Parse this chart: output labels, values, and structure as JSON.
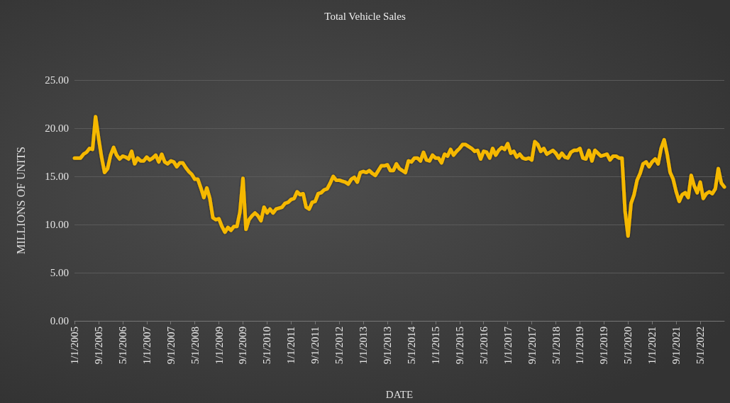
{
  "chart_data": {
    "type": "line",
    "title": "Total Vehicle Sales",
    "xlabel": "DATE",
    "ylabel": "MILLIONS OF UNITS",
    "categories": [
      "1/1/2005",
      null,
      null,
      null,
      null,
      null,
      null,
      null,
      "9/1/2005",
      null,
      null,
      null,
      null,
      null,
      null,
      null,
      "5/1/2006",
      null,
      null,
      null,
      null,
      null,
      null,
      null,
      "1/1/2007",
      null,
      null,
      null,
      null,
      null,
      null,
      null,
      "9/1/2007",
      null,
      null,
      null,
      null,
      null,
      null,
      null,
      "5/1/2008",
      null,
      null,
      null,
      null,
      null,
      null,
      null,
      "1/1/2009",
      null,
      null,
      null,
      null,
      null,
      null,
      null,
      "9/1/2009",
      null,
      null,
      null,
      null,
      null,
      null,
      null,
      "5/1/2010",
      null,
      null,
      null,
      null,
      null,
      null,
      null,
      "1/1/2011",
      null,
      null,
      null,
      null,
      null,
      null,
      null,
      "9/1/2011",
      null,
      null,
      null,
      null,
      null,
      null,
      null,
      "5/1/2012",
      null,
      null,
      null,
      null,
      null,
      null,
      null,
      "1/1/2013",
      null,
      null,
      null,
      null,
      null,
      null,
      null,
      "9/1/2013",
      null,
      null,
      null,
      null,
      null,
      null,
      null,
      "5/1/2014",
      null,
      null,
      null,
      null,
      null,
      null,
      null,
      "1/1/2015",
      null,
      null,
      null,
      null,
      null,
      null,
      null,
      "9/1/2015",
      null,
      null,
      null,
      null,
      null,
      null,
      null,
      "5/1/2016",
      null,
      null,
      null,
      null,
      null,
      null,
      null,
      "1/1/2017",
      null,
      null,
      null,
      null,
      null,
      null,
      null,
      "9/1/2017",
      null,
      null,
      null,
      null,
      null,
      null,
      null,
      "5/1/2018",
      null,
      null,
      null,
      null,
      null,
      null,
      null,
      "1/1/2019",
      null,
      null,
      null,
      null,
      null,
      null,
      null,
      "9/1/2019",
      null,
      null,
      null,
      null,
      null,
      null,
      null,
      "5/1/2020",
      null,
      null,
      null,
      null,
      null,
      null,
      null,
      "1/1/2021",
      null,
      null,
      null,
      null,
      null,
      null,
      null,
      "9/1/2021",
      null,
      null,
      null,
      null,
      null,
      null,
      null,
      "5/1/2022",
      null,
      null,
      null,
      null,
      null,
      null,
      null,
      null
    ],
    "series": [
      {
        "color": "#f5b800",
        "values": [
          16.9,
          16.9,
          16.9,
          17.3,
          17.5,
          17.9,
          17.8,
          21.2,
          19.0,
          17.0,
          15.4,
          15.8,
          17.2,
          18.0,
          17.2,
          16.8,
          17.1,
          17.0,
          16.8,
          17.6,
          16.3,
          16.9,
          16.6,
          16.6,
          17.0,
          16.7,
          16.9,
          17.2,
          16.5,
          17.3,
          16.5,
          16.3,
          16.6,
          16.5,
          16.0,
          16.4,
          16.4,
          15.9,
          15.5,
          15.2,
          14.7,
          14.7,
          13.8,
          12.8,
          13.8,
          12.7,
          10.7,
          10.5,
          10.6,
          9.8,
          9.2,
          9.7,
          9.4,
          9.8,
          9.8,
          11.3,
          14.8,
          9.5,
          10.5,
          10.9,
          11.2,
          10.9,
          10.4,
          11.8,
          11.2,
          11.6,
          11.2,
          11.6,
          11.7,
          11.8,
          12.2,
          12.3,
          12.6,
          12.7,
          13.4,
          13.1,
          13.2,
          11.8,
          11.6,
          12.3,
          12.4,
          13.2,
          13.3,
          13.6,
          13.7,
          14.3,
          15.0,
          14.6,
          14.6,
          14.5,
          14.4,
          14.2,
          14.7,
          14.9,
          14.4,
          15.4,
          15.5,
          15.4,
          15.6,
          15.3,
          15.1,
          15.6,
          16.1,
          16.1,
          16.2,
          15.6,
          15.6,
          16.3,
          15.8,
          15.6,
          15.4,
          16.6,
          16.5,
          16.9,
          16.9,
          16.6,
          17.5,
          16.7,
          16.6,
          17.2,
          16.9,
          16.9,
          16.4,
          17.3,
          17.1,
          17.8,
          17.2,
          17.6,
          17.9,
          18.3,
          18.3,
          18.1,
          17.9,
          17.6,
          17.7,
          16.8,
          17.6,
          17.5,
          16.9,
          17.9,
          17.2,
          17.7,
          18.0,
          17.8,
          18.4,
          17.4,
          17.6,
          17.0,
          17.3,
          16.9,
          16.8,
          16.9,
          16.7,
          18.6,
          18.3,
          17.6,
          17.9,
          17.3,
          17.5,
          17.7,
          17.4,
          16.9,
          17.4,
          17.0,
          16.9,
          17.5,
          17.7,
          17.7,
          17.9,
          16.9,
          16.8,
          17.7,
          16.6,
          17.7,
          17.4,
          17.1,
          17.2,
          17.3,
          16.7,
          17.1,
          17.1,
          16.9,
          16.9,
          11.4,
          8.8,
          12.2,
          13.1,
          14.6,
          15.3,
          16.3,
          16.5,
          16.0,
          16.5,
          16.8,
          16.3,
          17.9,
          18.8,
          17.3,
          15.4,
          14.7,
          13.4,
          12.4,
          13.1,
          13.3,
          12.8,
          15.1,
          14.0,
          13.3,
          14.4,
          12.7,
          13.2,
          13.4,
          13.2,
          13.7,
          15.8,
          14.3,
          13.9
        ]
      }
    ],
    "ylim": [
      0,
      25
    ],
    "yticks": [
      {
        "value": 0,
        "label": "0.00"
      },
      {
        "value": 5,
        "label": "5.00"
      },
      {
        "value": 10,
        "label": "10.00"
      },
      {
        "value": 15,
        "label": "15.00"
      },
      {
        "value": 20,
        "label": "20.00"
      },
      {
        "value": 25,
        "label": "25.00"
      }
    ],
    "grid": "y",
    "marker": "none",
    "line_style": "solid"
  }
}
